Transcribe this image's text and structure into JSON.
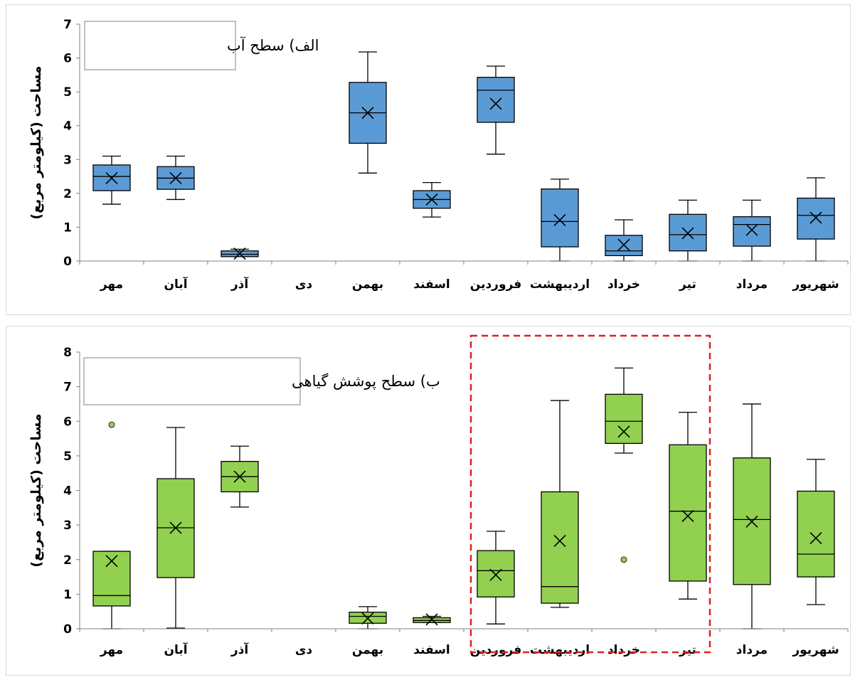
{
  "chart_data": [
    {
      "type": "box",
      "title": "الف) سطح آب",
      "ylabel": "مساحت (کیلومتر مربع)",
      "xlabel": "",
      "ylim": [
        0,
        7
      ],
      "yticks": [
        0,
        1,
        2,
        3,
        4,
        5,
        6,
        7
      ],
      "grid": false,
      "box_color": "#5b9bd5",
      "categories": [
        "مهر",
        "آبان",
        "آذر",
        "دی",
        "بهمن",
        "اسفند",
        "فروردین",
        "اردیبهشت",
        "خرداد",
        "تیر",
        "مرداد",
        "شهریور"
      ],
      "boxes": [
        {
          "min": 1.68,
          "q1": 2.08,
          "median": 2.5,
          "q3": 2.84,
          "max": 3.1,
          "mean": 2.45
        },
        {
          "min": 1.82,
          "q1": 2.12,
          "median": 2.45,
          "q3": 2.79,
          "max": 3.1,
          "mean": 2.45
        },
        {
          "min": 0.13,
          "q1": 0.13,
          "median": 0.2,
          "q3": 0.3,
          "max": 0.35,
          "mean": 0.22
        },
        null,
        {
          "min": 2.6,
          "q1": 3.48,
          "median": 4.38,
          "q3": 5.28,
          "max": 6.18,
          "mean": 4.38
        },
        {
          "min": 1.3,
          "q1": 1.56,
          "median": 1.82,
          "q3": 2.08,
          "max": 2.32,
          "mean": 1.82
        },
        {
          "min": 3.16,
          "q1": 4.1,
          "median": 5.05,
          "q3": 5.43,
          "max": 5.76,
          "mean": 4.65
        },
        {
          "min": 0.0,
          "q1": 0.42,
          "median": 1.17,
          "q3": 2.13,
          "max": 2.42,
          "mean": 1.21
        },
        {
          "min": 0.0,
          "q1": 0.16,
          "median": 0.3,
          "q3": 0.76,
          "max": 1.22,
          "mean": 0.48
        },
        {
          "min": 0.0,
          "q1": 0.3,
          "median": 0.78,
          "q3": 1.38,
          "max": 1.8,
          "mean": 0.82
        },
        {
          "min": 0.0,
          "q1": 0.44,
          "median": 1.08,
          "q3": 1.31,
          "max": 1.8,
          "mean": 0.92
        },
        {
          "min": 0.0,
          "q1": 0.65,
          "median": 1.35,
          "q3": 1.86,
          "max": 2.46,
          "mean": 1.28
        }
      ]
    },
    {
      "type": "box",
      "title": "ب) سطح پوشش گیاهی",
      "ylabel": "مساحت (کیلومتر مربع)",
      "xlabel": "",
      "ylim": [
        0,
        8
      ],
      "yticks": [
        0,
        1,
        2,
        3,
        4,
        5,
        6,
        7,
        8
      ],
      "grid": false,
      "box_color": "#92d050",
      "highlight": {
        "from": "فروردین",
        "to": "تیر",
        "color": "#e02020",
        "style": "dashed"
      },
      "categories": [
        "مهر",
        "آبان",
        "آذر",
        "دی",
        "بهمن",
        "اسفند",
        "فروردین",
        "اردیبهشت",
        "خرداد",
        "تیر",
        "مرداد",
        "شهریور"
      ],
      "boxes": [
        {
          "min": 0.0,
          "q1": 0.66,
          "median": 0.96,
          "q3": 2.24,
          "max": 2.24,
          "mean": 1.96,
          "outliers": [
            5.9
          ]
        },
        {
          "min": 0.02,
          "q1": 1.48,
          "median": 2.92,
          "q3": 4.34,
          "max": 5.82,
          "mean": 2.92
        },
        {
          "min": 3.52,
          "q1": 3.96,
          "median": 4.4,
          "q3": 4.84,
          "max": 5.28,
          "mean": 4.4
        },
        null,
        {
          "min": 0.0,
          "q1": 0.16,
          "median": 0.36,
          "q3": 0.48,
          "max": 0.64,
          "mean": 0.3
        },
        {
          "min": 0.18,
          "q1": 0.18,
          "median": 0.24,
          "q3": 0.32,
          "max": 0.36,
          "mean": 0.27
        },
        {
          "min": 0.14,
          "q1": 0.92,
          "median": 1.68,
          "q3": 2.26,
          "max": 2.82,
          "mean": 1.56
        },
        {
          "min": 0.62,
          "q1": 0.74,
          "median": 1.22,
          "q3": 3.96,
          "max": 6.6,
          "mean": 2.54
        },
        {
          "min": 5.08,
          "q1": 5.36,
          "median": 6.0,
          "q3": 6.78,
          "max": 7.54,
          "mean": 5.7,
          "outliers": [
            2.0
          ]
        },
        {
          "min": 0.86,
          "q1": 1.38,
          "median": 3.4,
          "q3": 5.32,
          "max": 6.26,
          "mean": 3.26
        },
        {
          "min": 0.0,
          "q1": 1.28,
          "median": 3.16,
          "q3": 4.94,
          "max": 6.5,
          "mean": 3.1
        },
        {
          "min": 0.7,
          "q1": 1.5,
          "median": 2.16,
          "q3": 3.98,
          "max": 4.9,
          "mean": 2.62
        }
      ]
    }
  ]
}
